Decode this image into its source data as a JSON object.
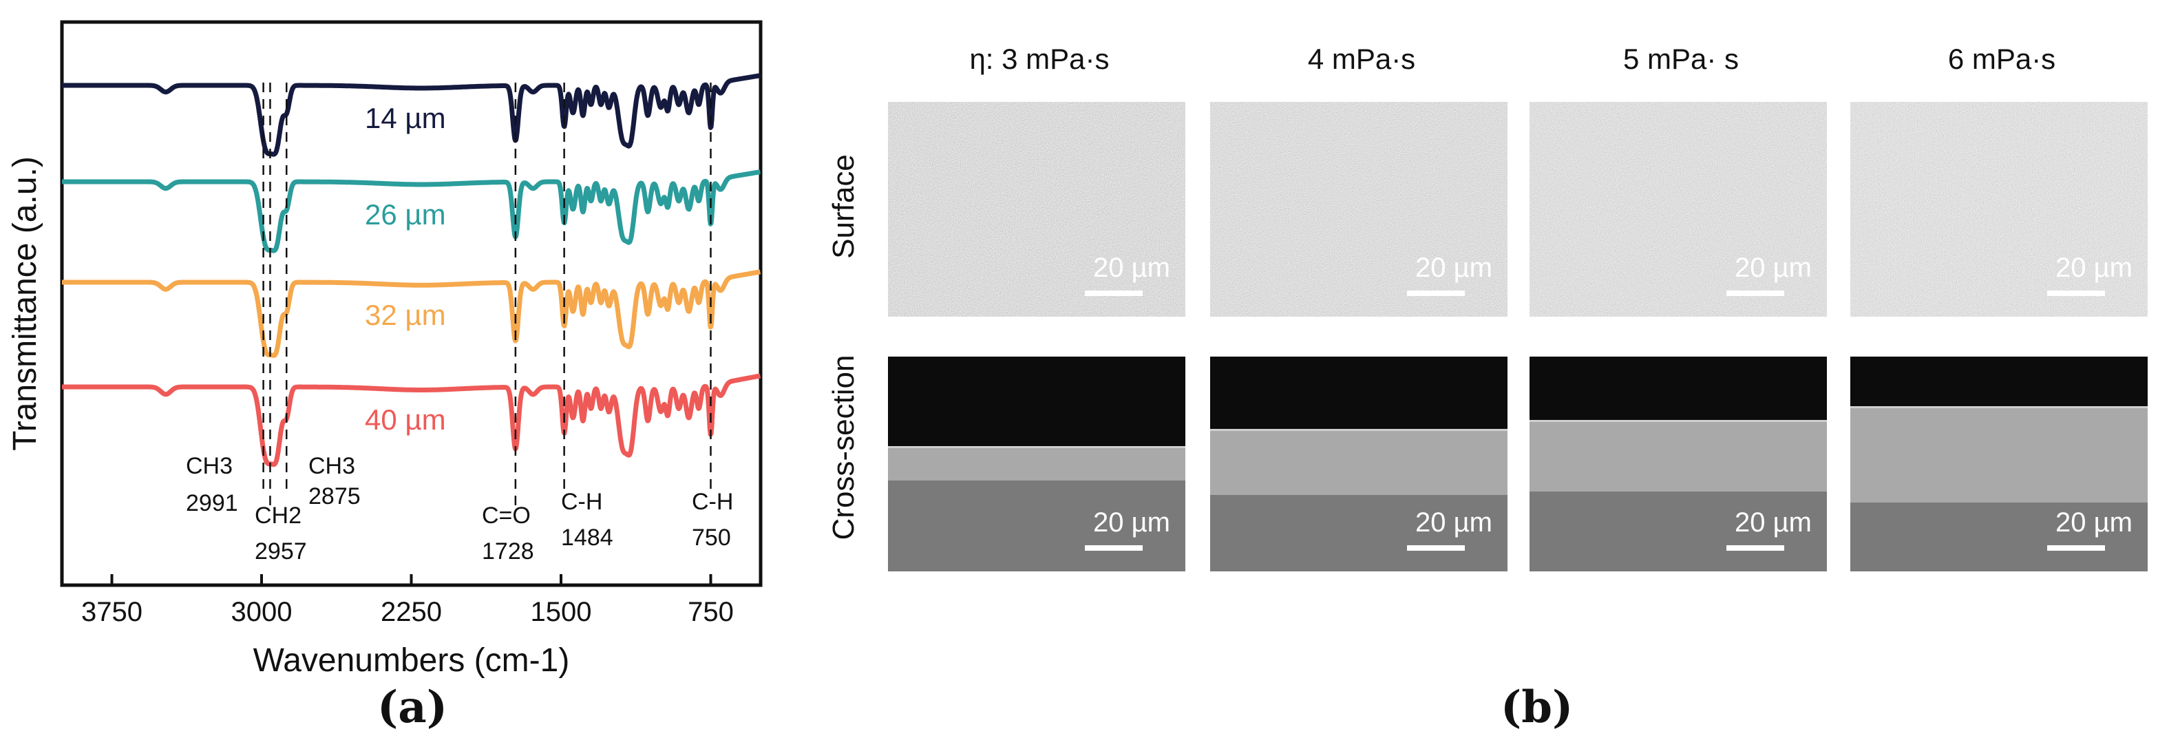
{
  "chart_data": {
    "type": "line",
    "xlabel": "Wavenumbers (cm-1)",
    "ylabel": "Transmittance (a.u.)",
    "xlim": [
      4000,
      500
    ],
    "xticks": [
      3750,
      3000,
      2250,
      1500,
      750
    ],
    "grid": false,
    "series": [
      {
        "name": "14 µm",
        "color": "#151a3f"
      },
      {
        "name": "26 µm",
        "color": "#2a9d9c"
      },
      {
        "name": "32 µm",
        "color": "#f5a84c"
      },
      {
        "name": "40 µm",
        "color": "#ee5a57"
      }
    ],
    "peaks": [
      {
        "label": "CH3",
        "value": "2991",
        "x": 2991
      },
      {
        "label": "CH2",
        "value": "2957",
        "x": 2957
      },
      {
        "label": "CH3",
        "value": "2875",
        "x": 2875
      },
      {
        "label": "C=O",
        "value": "1728",
        "x": 1728
      },
      {
        "label": "C-H",
        "value": "1484",
        "x": 1484
      },
      {
        "label": "C-H",
        "value": "750",
        "x": 750
      }
    ]
  },
  "panel_a_label": "(a)",
  "panel_b_label": "(b)",
  "panel_b": {
    "columns": [
      "η: 3 mPa·s",
      "4 mPa·s",
      "5 mPa· s",
      "6 mPa·s"
    ],
    "rows": [
      "Surface",
      "Cross-section"
    ],
    "scale_label": "20 µm"
  }
}
